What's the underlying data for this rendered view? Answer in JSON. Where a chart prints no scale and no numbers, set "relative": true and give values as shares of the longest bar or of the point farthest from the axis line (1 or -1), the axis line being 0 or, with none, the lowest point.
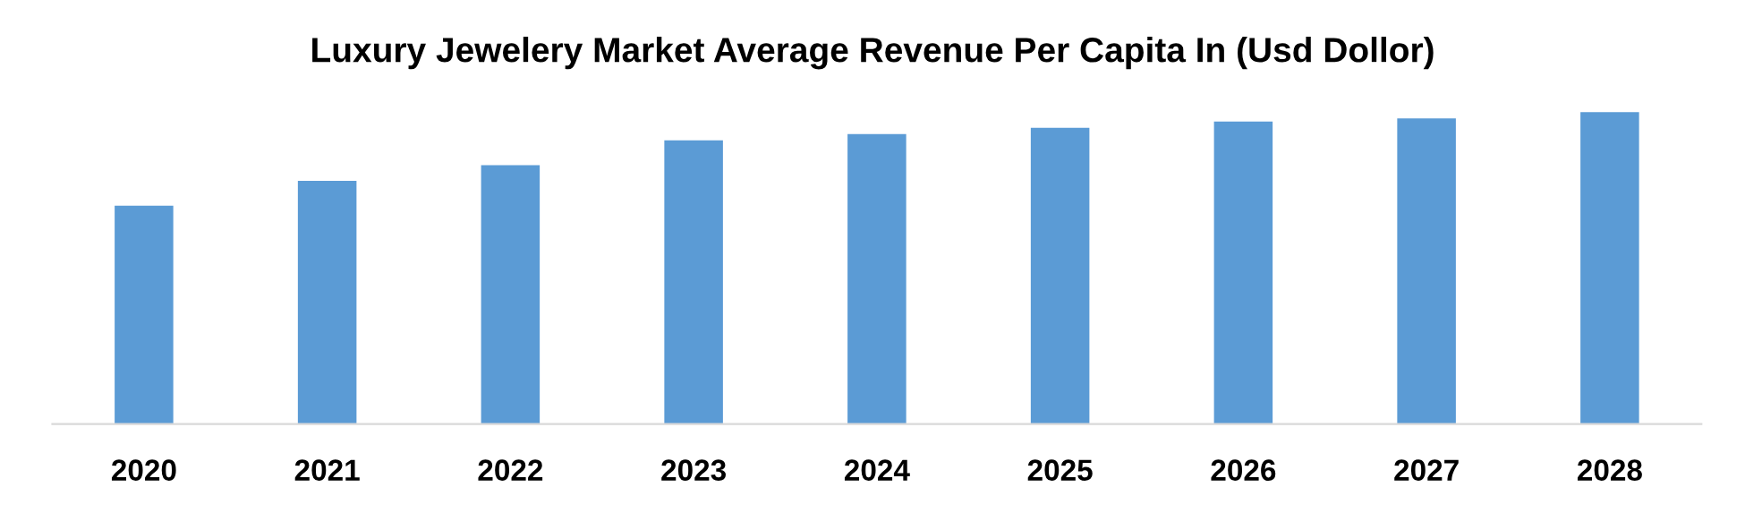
{
  "chart_data": {
    "type": "bar",
    "title": "Luxury Jewelery Market Average Revenue Per Capita In (Usd Dollor)",
    "categories": [
      "2020",
      "2021",
      "2022",
      "2023",
      "2024",
      "2025",
      "2026",
      "2027",
      "2028"
    ],
    "values": [
      0.7,
      0.78,
      0.83,
      0.91,
      0.93,
      0.95,
      0.97,
      0.98,
      1
    ],
    "color": "#5b9bd5",
    "relative": true
  }
}
